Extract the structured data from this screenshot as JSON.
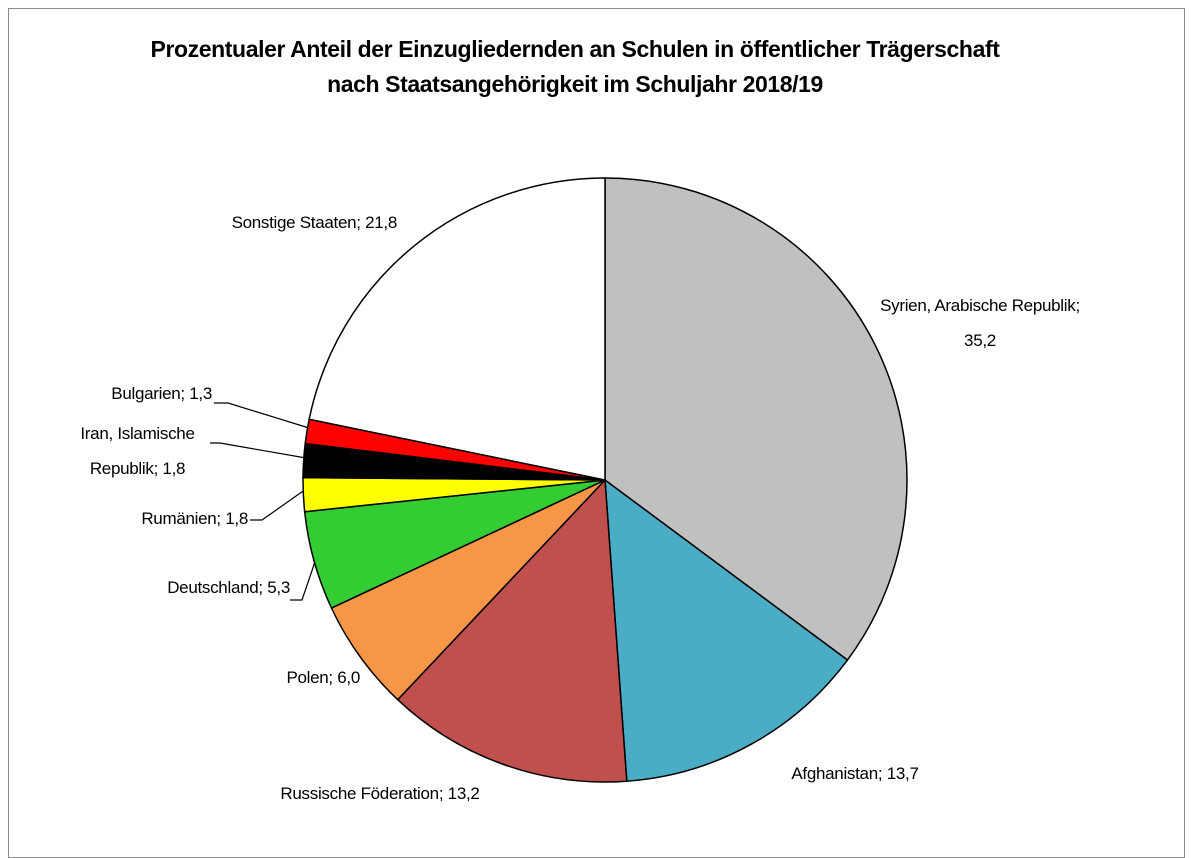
{
  "chart_data": {
    "type": "pie",
    "title": "Prozentualer Anteil der Einzugliedernden an Schulen in öffentlicher Trägerschaft nach Staatsangehörigkeit im Schuljahr 2018/19",
    "labels": [
      "Syrien, Arabische Republik; 35,2",
      "Afghanistan; 13,7",
      "Russische Föderation; 13,2",
      "Polen; 6,0",
      "Deutschland; 5,3",
      "Rumänien; 1,8",
      "Iran, Islamische Republik; 1,8",
      "Bulgarien; 1,3",
      "Sonstige Staaten; 21,8"
    ],
    "values": [
      35.2,
      13.7,
      13.2,
      6.0,
      5.3,
      1.8,
      1.8,
      1.3,
      21.8
    ],
    "colors": [
      "#c0c0c0",
      "#4bacc6",
      "#c0504d",
      "#f79646",
      "#33cc33",
      "#ffff00",
      "#000000",
      "#ff0000",
      "#ffffff"
    ]
  }
}
